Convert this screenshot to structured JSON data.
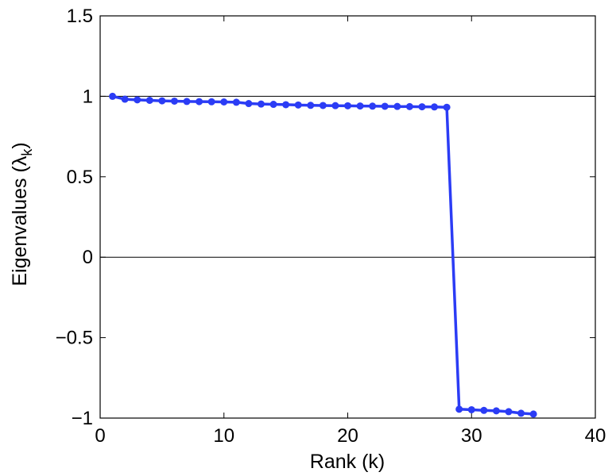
{
  "chart_data": {
    "type": "line",
    "xlabel": "Rank (k)",
    "ylabel": {
      "main": "Eigenvalues (",
      "symbol": "λ",
      "subscript": "k",
      "close": ")"
    },
    "xlim": [
      0,
      40
    ],
    "ylim": [
      -1,
      1.5
    ],
    "xticks": [
      0,
      10,
      20,
      30,
      40
    ],
    "yticks": [
      -1,
      -0.5,
      0,
      0.5,
      1,
      1.5
    ],
    "xtick_labels": [
      "0",
      "10",
      "20",
      "30",
      "40"
    ],
    "ytick_labels": [
      "−1",
      "−0.5",
      "0",
      "0.5",
      "1",
      "1.5"
    ],
    "reference_lines_y": [
      1,
      0
    ],
    "grid": false,
    "series": [
      {
        "color": "#2b3cf5",
        "x": [
          1,
          2,
          3,
          4,
          5,
          6,
          7,
          8,
          9,
          10,
          11,
          12,
          13,
          14,
          15,
          16,
          17,
          18,
          19,
          20,
          21,
          22,
          23,
          24,
          25,
          26,
          27,
          28,
          29,
          30,
          31,
          32,
          33,
          34,
          35
        ],
        "y": [
          1.0,
          0.982,
          0.978,
          0.975,
          0.972,
          0.97,
          0.968,
          0.967,
          0.966,
          0.965,
          0.963,
          0.955,
          0.952,
          0.95,
          0.948,
          0.946,
          0.944,
          0.943,
          0.942,
          0.941,
          0.94,
          0.939,
          0.938,
          0.937,
          0.936,
          0.935,
          0.934,
          0.932,
          -0.945,
          -0.948,
          -0.952,
          -0.955,
          -0.96,
          -0.97,
          -0.975
        ]
      }
    ]
  }
}
